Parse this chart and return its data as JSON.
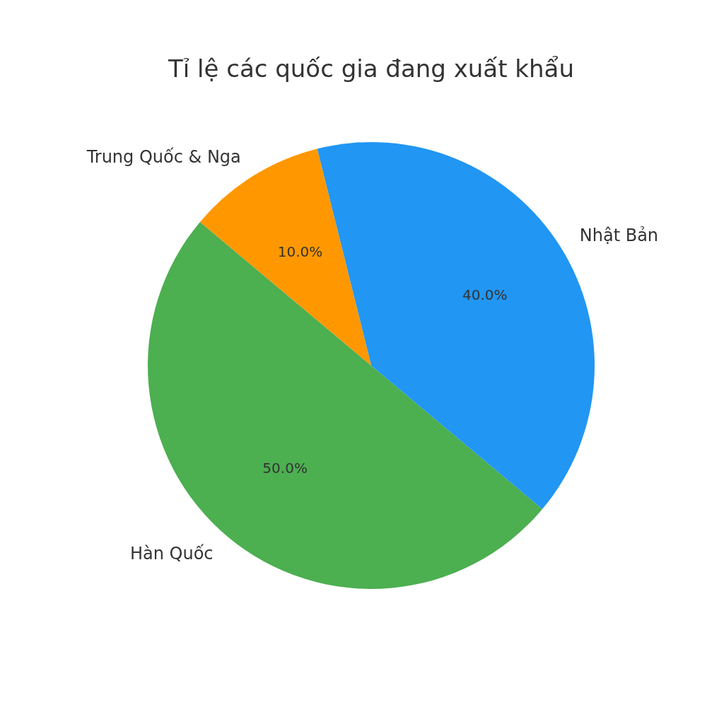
{
  "chart_data": {
    "type": "pie",
    "title": "Tỉ lệ các quốc gia đang xuất khẩu",
    "categories": [
      "Hàn Quốc",
      "Nhật Bản",
      "Trung Quốc & Nga"
    ],
    "values": [
      50,
      40,
      10
    ],
    "colors": [
      "#4caf50",
      "#2196f3",
      "#ff9800"
    ],
    "value_labels": [
      "50.0%",
      "40.0%",
      "10.0%"
    ],
    "legend": false
  }
}
